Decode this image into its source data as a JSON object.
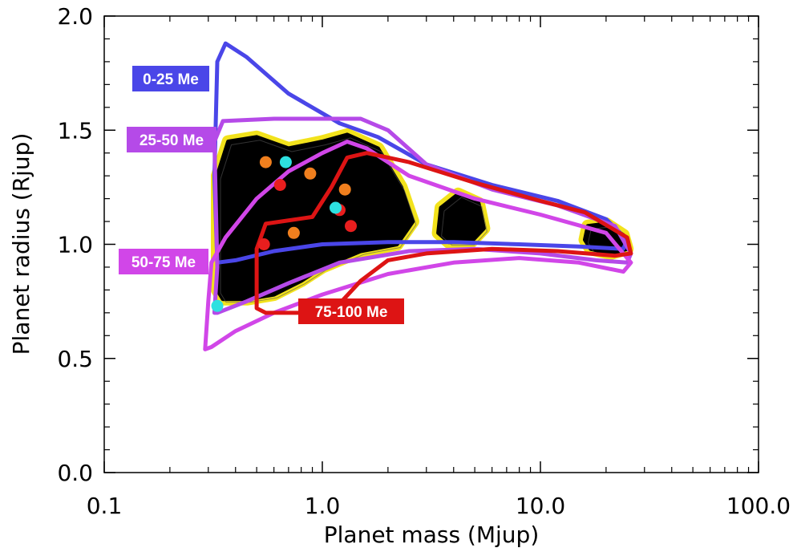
{
  "chart_data": {
    "type": "scatter",
    "xlabel": "Planet mass (Mjup)",
    "ylabel": "Planet radius (Rjup)",
    "xscale": "log",
    "xlim": [
      0.1,
      100.0
    ],
    "ylim": [
      0.0,
      2.0
    ],
    "x_ticks": [
      {
        "value": 0.1,
        "label": "0.1"
      },
      {
        "value": 1.0,
        "label": "1.0"
      },
      {
        "value": 10.0,
        "label": "10.0"
      },
      {
        "value": 100.0,
        "label": "100.0"
      }
    ],
    "y_ticks": [
      {
        "value": 0.0,
        "label": "0.0"
      },
      {
        "value": 0.5,
        "label": "0.5"
      },
      {
        "value": 1.0,
        "label": "1.0"
      },
      {
        "value": 1.5,
        "label": "1.5"
      },
      {
        "value": 2.0,
        "label": "2.0"
      }
    ],
    "contours": [
      {
        "label": "0-25 Me",
        "color": "#4a46e8",
        "points": [
          [
            0.33,
            0.92
          ],
          [
            0.32,
            1.3
          ],
          [
            0.33,
            1.8
          ],
          [
            0.36,
            1.88
          ],
          [
            0.45,
            1.82
          ],
          [
            0.7,
            1.66
          ],
          [
            1.2,
            1.53
          ],
          [
            1.8,
            1.47
          ],
          [
            3,
            1.35
          ],
          [
            6,
            1.26
          ],
          [
            12,
            1.19
          ],
          [
            20,
            1.11
          ],
          [
            25,
            1.02
          ],
          [
            24,
            0.98
          ],
          [
            15,
            0.99
          ],
          [
            8,
            1.0
          ],
          [
            4,
            1.01
          ],
          [
            2,
            1.01
          ],
          [
            1,
            1.0
          ],
          [
            0.6,
            0.97
          ],
          [
            0.4,
            0.93
          ],
          [
            0.33,
            0.92
          ]
        ]
      },
      {
        "label": "25-50 Me",
        "color": "#b54ae8",
        "points": [
          [
            0.32,
            0.7
          ],
          [
            0.33,
            0.9
          ],
          [
            0.32,
            1.45
          ],
          [
            0.35,
            1.54
          ],
          [
            0.6,
            1.55
          ],
          [
            1.5,
            1.55
          ],
          [
            2,
            1.5
          ],
          [
            3,
            1.35
          ],
          [
            6,
            1.24
          ],
          [
            12,
            1.17
          ],
          [
            22,
            1.08
          ],
          [
            26,
            0.96
          ],
          [
            25,
            0.92
          ],
          [
            18,
            0.93
          ],
          [
            10,
            0.96
          ],
          [
            5,
            0.98
          ],
          [
            2.5,
            0.97
          ],
          [
            1.2,
            0.92
          ],
          [
            0.7,
            0.83
          ],
          [
            0.45,
            0.75
          ],
          [
            0.33,
            0.7
          ]
        ]
      },
      {
        "label": "50-75 Me",
        "color": "#d146e8",
        "points": [
          [
            0.29,
            0.54
          ],
          [
            0.3,
            0.75
          ],
          [
            0.31,
            0.92
          ],
          [
            0.36,
            1.03
          ],
          [
            0.5,
            1.2
          ],
          [
            0.7,
            1.32
          ],
          [
            1.0,
            1.4
          ],
          [
            1.3,
            1.45
          ],
          [
            1.6,
            1.42
          ],
          [
            2.5,
            1.3
          ],
          [
            5,
            1.2
          ],
          [
            10,
            1.13
          ],
          [
            20,
            1.05
          ],
          [
            26,
            0.92
          ],
          [
            24,
            0.88
          ],
          [
            15,
            0.92
          ],
          [
            8,
            0.94
          ],
          [
            4,
            0.92
          ],
          [
            2,
            0.87
          ],
          [
            1,
            0.78
          ],
          [
            0.6,
            0.7
          ],
          [
            0.4,
            0.62
          ],
          [
            0.31,
            0.55
          ],
          [
            0.29,
            0.54
          ]
        ]
      },
      {
        "label": "75-100 Me",
        "color": "#dd1414",
        "points": [
          [
            0.5,
            0.72
          ],
          [
            0.5,
            0.98
          ],
          [
            0.55,
            1.09
          ],
          [
            0.9,
            1.12
          ],
          [
            1.1,
            1.25
          ],
          [
            1.3,
            1.38
          ],
          [
            1.6,
            1.4
          ],
          [
            2.5,
            1.36
          ],
          [
            5,
            1.27
          ],
          [
            10,
            1.19
          ],
          [
            16,
            1.14
          ],
          [
            25,
            1.03
          ],
          [
            26,
            0.96
          ],
          [
            22,
            0.95
          ],
          [
            12,
            0.97
          ],
          [
            6,
            0.98
          ],
          [
            3,
            0.96
          ],
          [
            2,
            0.93
          ],
          [
            1.5,
            0.84
          ],
          [
            1.2,
            0.74
          ],
          [
            0.8,
            0.7
          ],
          [
            0.55,
            0.7
          ],
          [
            0.5,
            0.72
          ]
        ]
      }
    ],
    "points": [
      {
        "x": 0.55,
        "y": 1.36,
        "color": "#f07f1e"
      },
      {
        "x": 0.88,
        "y": 1.31,
        "color": "#f07f1e"
      },
      {
        "x": 1.27,
        "y": 1.24,
        "color": "#f07f1e"
      },
      {
        "x": 0.74,
        "y": 1.05,
        "color": "#f07f1e"
      },
      {
        "x": 0.64,
        "y": 1.26,
        "color": "#e81e1e"
      },
      {
        "x": 1.2,
        "y": 1.15,
        "color": "#e81e1e"
      },
      {
        "x": 1.35,
        "y": 1.08,
        "color": "#e81e1e"
      },
      {
        "x": 0.54,
        "y": 1.0,
        "color": "#e81e1e"
      },
      {
        "x": 0.68,
        "y": 1.36,
        "color": "#2de0e0"
      },
      {
        "x": 1.15,
        "y": 1.16,
        "color": "#2de0e0"
      },
      {
        "x": 0.33,
        "y": 0.73,
        "color": "#2de0e0"
      }
    ],
    "density_blobs": [
      [
        [
          0.33,
          0.8
        ],
        [
          0.33,
          1.3
        ],
        [
          0.37,
          1.45
        ],
        [
          0.5,
          1.47
        ],
        [
          0.7,
          1.42
        ],
        [
          1.0,
          1.45
        ],
        [
          1.3,
          1.48
        ],
        [
          1.8,
          1.42
        ],
        [
          2.3,
          1.25
        ],
        [
          2.6,
          1.1
        ],
        [
          2.2,
          1.0
        ],
        [
          1.5,
          0.97
        ],
        [
          1.0,
          0.9
        ],
        [
          0.8,
          0.84
        ],
        [
          0.6,
          0.78
        ],
        [
          0.45,
          0.76
        ],
        [
          0.35,
          0.76
        ],
        [
          0.33,
          0.8
        ]
      ],
      [
        [
          3.4,
          1.05
        ],
        [
          3.5,
          1.16
        ],
        [
          4.2,
          1.22
        ],
        [
          5.2,
          1.18
        ],
        [
          5.5,
          1.07
        ],
        [
          4.8,
          1.01
        ],
        [
          3.8,
          1.01
        ],
        [
          3.4,
          1.05
        ]
      ],
      [
        [
          16,
          1.02
        ],
        [
          16.5,
          1.08
        ],
        [
          20,
          1.09
        ],
        [
          24,
          1.04
        ],
        [
          25,
          0.98
        ],
        [
          21,
          0.96
        ],
        [
          17,
          0.98
        ],
        [
          16,
          1.02
        ]
      ]
    ]
  }
}
